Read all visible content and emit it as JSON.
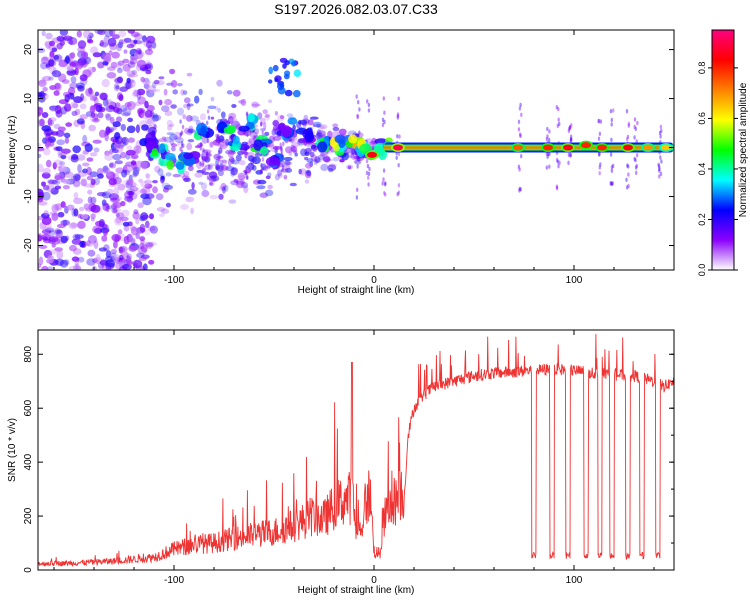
{
  "title": "S197.2026.082.03.07.C33",
  "chart_data": [
    {
      "type": "heatmap",
      "title": "S197.2026.082.03.07.C33",
      "xlabel": "Height of straight line (km)",
      "ylabel": "Frequency (Hz)",
      "xlim": [
        -168,
        150
      ],
      "ylim": [
        -25,
        24
      ],
      "xticks": [
        -100,
        0,
        100
      ],
      "yticks": [
        -20,
        -10,
        0,
        10,
        20
      ],
      "colorbar": {
        "label": "Normalized spectral amplitude",
        "range": [
          0.0,
          0.95
        ],
        "ticks": [
          0.0,
          0.2,
          0.4,
          0.6,
          0.8
        ],
        "tick_labels": [
          "0.0",
          "0.2",
          "0.4",
          "0.6",
          "0.8"
        ],
        "colors": [
          "#ffffff",
          "#8b00ff",
          "#0000ff",
          "#00ffff",
          "#00ff00",
          "#ffff00",
          "#ff8000",
          "#ff0000",
          "#ff0080"
        ]
      },
      "carrier_line": {
        "x_start": 5,
        "x_end": 150,
        "frequency": 0.0,
        "amplitude": 0.72
      },
      "hot_spots": [
        {
          "x": -1,
          "y": -1.5,
          "amplitude": 0.85
        },
        {
          "x": 12,
          "y": 0.0,
          "amplitude": 0.9
        },
        {
          "x": 72,
          "y": 0.0,
          "amplitude": 0.75
        },
        {
          "x": 87,
          "y": 0.0,
          "amplitude": 0.8
        },
        {
          "x": 97,
          "y": 0.0,
          "amplitude": 0.85
        },
        {
          "x": 106,
          "y": 0.5,
          "amplitude": 0.8
        },
        {
          "x": 114,
          "y": 0.0,
          "amplitude": 0.8
        },
        {
          "x": 127,
          "y": 0.0,
          "amplitude": 0.85
        },
        {
          "x": 137,
          "y": 0.0,
          "amplitude": 0.7
        },
        {
          "x": 146,
          "y": 0.0,
          "amplitude": 0.65
        }
      ],
      "blobs": [
        {
          "x": -113,
          "y": 1.0,
          "amplitude": 0.3
        },
        {
          "x": -107,
          "y": -1.5,
          "amplitude": 0.45
        },
        {
          "x": -99,
          "y": -3.0,
          "amplitude": 0.5
        },
        {
          "x": -92,
          "y": -2.0,
          "amplitude": 0.35
        },
        {
          "x": -86,
          "y": 2.5,
          "amplitude": 0.4
        },
        {
          "x": -74,
          "y": 3.5,
          "amplitude": 0.45
        },
        {
          "x": -68,
          "y": 1.0,
          "amplitude": 0.4
        },
        {
          "x": -62,
          "y": 5.0,
          "amplitude": 0.45
        },
        {
          "x": -56,
          "y": 0.5,
          "amplitude": 0.5
        },
        {
          "x": -50,
          "y": -2.0,
          "amplitude": 0.3
        },
        {
          "x": -43,
          "y": 4.0,
          "amplitude": 0.3
        },
        {
          "x": -34,
          "y": 2.0,
          "amplitude": 0.25
        },
        {
          "x": -25,
          "y": 1.0,
          "amplitude": 0.45
        },
        {
          "x": -18,
          "y": 0.5,
          "amplitude": 0.55
        },
        {
          "x": -10,
          "y": 0.5,
          "amplitude": 0.65
        },
        {
          "x": -5,
          "y": -0.5,
          "amplitude": 0.6
        },
        {
          "x": 5,
          "y": 0.0,
          "amplitude": 0.5
        }
      ]
    },
    {
      "type": "line",
      "xlabel": "Height of straight line (km)",
      "ylabel": "SNR (10 * v/v)",
      "xlim": [
        -168,
        150
      ],
      "ylim": [
        0,
        890
      ],
      "xticks": [
        -100,
        0,
        100
      ],
      "yticks": [
        0,
        200,
        400,
        600,
        800
      ],
      "series": [
        {
          "name": "SNR",
          "color": "#ee3333",
          "x": [
            -168,
            -150,
            -130,
            -110,
            -100,
            -90,
            -80,
            -70,
            -60,
            -50,
            -40,
            -30,
            -25,
            -20,
            -15,
            -11,
            -8,
            -5,
            -2,
            0,
            3,
            5,
            8,
            12,
            15,
            17,
            20,
            25,
            30,
            40,
            50,
            60,
            70,
            80,
            90,
            100,
            110,
            120,
            130,
            140,
            145,
            150
          ],
          "values": [
            20,
            22,
            28,
            40,
            65,
            80,
            85,
            100,
            110,
            120,
            140,
            170,
            160,
            200,
            220,
            230,
            90,
            180,
            250,
            60,
            50,
            160,
            200,
            230,
            250,
            500,
            600,
            650,
            680,
            700,
            720,
            730,
            735,
            740,
            745,
            740,
            730,
            725,
            720,
            700,
            680,
            700
          ]
        }
      ],
      "dropouts": [
        80,
        89,
        97,
        106,
        113,
        119,
        127,
        134,
        142
      ],
      "dropout_level": 40
    }
  ]
}
